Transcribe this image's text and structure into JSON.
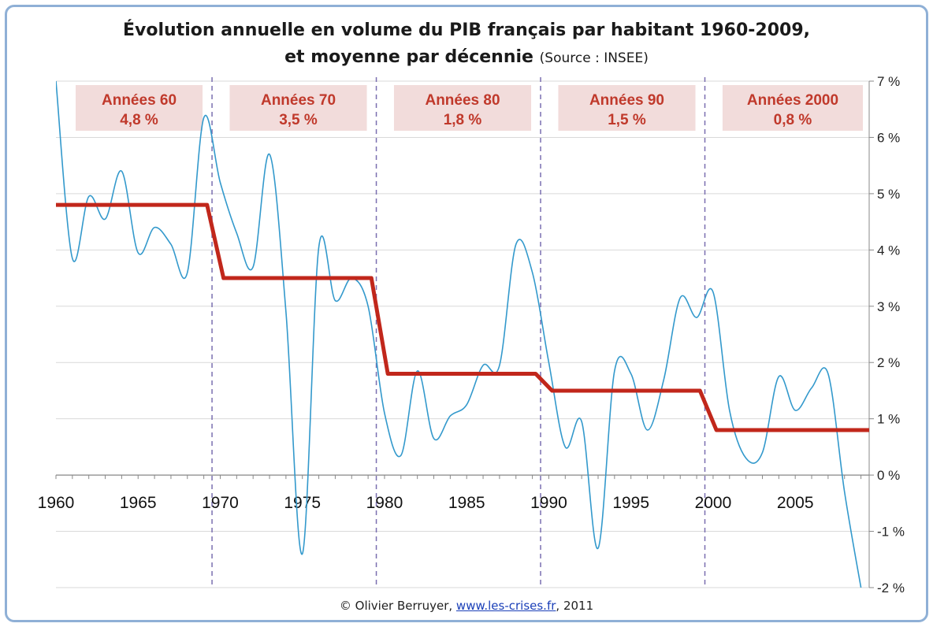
{
  "chart_data": {
    "type": "line",
    "title": "Évolution annuelle en volume du PIB français par habitant 1960-2009,",
    "subtitle": "et moyenne par décennie",
    "source": "(Source : INSEE)",
    "x_ticks": [
      "1960",
      "1965",
      "1970",
      "1975",
      "1980",
      "1985",
      "1990",
      "1995",
      "2000",
      "2005"
    ],
    "y_ticks": [
      "7 %",
      "6 %",
      "5 %",
      "4 %",
      "3 %",
      "2 %",
      "1 %",
      "0 %",
      "-1 %",
      "-2 %"
    ],
    "ylim": [
      -2,
      7
    ],
    "xlim": [
      1960,
      2009
    ],
    "series": [
      {
        "color": "#3399cc",
        "x": [
          1960,
          1961,
          1962,
          1963,
          1964,
          1965,
          1966,
          1967,
          1968,
          1969,
          1970,
          1971,
          1972,
          1973,
          1974,
          1975,
          1976,
          1977,
          1978,
          1979,
          1980,
          1981,
          1982,
          1983,
          1984,
          1985,
          1986,
          1987,
          1988,
          1989,
          1990,
          1991,
          1992,
          1993,
          1994,
          1995,
          1996,
          1997,
          1998,
          1999,
          2000,
          2001,
          2002,
          2003,
          2004,
          2005,
          2006,
          2007,
          2008,
          2009
        ],
        "values": [
          7.0,
          3.85,
          4.95,
          4.55,
          5.4,
          3.95,
          4.4,
          4.1,
          3.6,
          6.35,
          5.2,
          4.3,
          3.7,
          5.7,
          2.9,
          -1.4,
          4.05,
          3.1,
          3.5,
          3.0,
          1.1,
          0.35,
          1.85,
          0.65,
          1.05,
          1.25,
          1.95,
          1.95,
          4.1,
          3.6,
          2.0,
          0.5,
          0.95,
          -1.3,
          1.85,
          1.8,
          0.8,
          1.7,
          3.15,
          2.8,
          3.25,
          1.15,
          0.3,
          0.4,
          1.75,
          1.15,
          1.55,
          1.8,
          -0.3,
          -2.0
        ]
      },
      {
        "color": "#c1271b",
        "x": [
          1960,
          1969.2,
          1970.2,
          1979.2,
          1980.2,
          1989.2,
          1990.2,
          1999.2,
          2000.2,
          2009.5
        ],
        "values": [
          4.8,
          4.8,
          3.5,
          3.5,
          1.8,
          1.8,
          1.5,
          1.5,
          0.8,
          0.8
        ]
      }
    ],
    "decade_separators": [
      1969.5,
      1979.5,
      1989.5,
      1999.5
    ],
    "decade_labels": [
      {
        "label": "Années 60",
        "value": "4,8 %"
      },
      {
        "label": "Années 70",
        "value": "3,5 %"
      },
      {
        "label": "Années 80",
        "value": "1,8 %"
      },
      {
        "label": "Années 90",
        "value": "1,5 %"
      },
      {
        "label": "Années 2000",
        "value": "0,8 %"
      }
    ],
    "grid": true
  },
  "footer": {
    "prefix": "© Olivier Berruyer,",
    "link": "www.les-crises.fr",
    "suffix": ",  2011"
  },
  "colors": {
    "frame": "#8fb0d6",
    "decade_box": "#f2dcdb",
    "decade_text": "#c0392b",
    "separator": "#7a6fb0"
  }
}
